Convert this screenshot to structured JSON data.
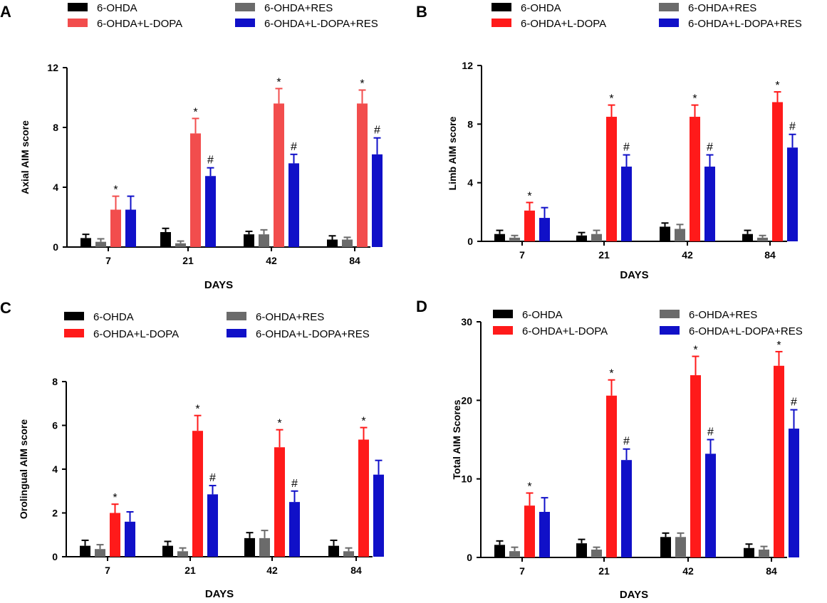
{
  "colors": {
    "6-OHDA": "#000000",
    "6-OHDA+RES": "#6b6b6b",
    "6-OHDA+L-DOPA": "#ff1a1a",
    "6-OHDA+L-DOPA-lightA": "#f24d4d",
    "6-OHDA+L-DOPA+RES": "#1010c8"
  },
  "chart_data": [
    {
      "panel": "A",
      "type": "bar",
      "title": "",
      "xlabel": "DAYS",
      "ylabel": "Axial AIM score",
      "categories": [
        "7",
        "21",
        "42",
        "84"
      ],
      "ylim": [
        0,
        12
      ],
      "yticks": [
        0,
        4,
        8,
        12
      ],
      "legend": [
        "6-OHDA",
        "6-OHDA+L-DOPA",
        "6-OHDA+RES",
        "6-OHDA+L-DOPA+RES"
      ],
      "series": [
        {
          "name": "6-OHDA",
          "values": [
            0.6,
            1.0,
            0.85,
            0.5
          ],
          "errors": [
            0.25,
            0.25,
            0.2,
            0.25
          ],
          "marks": [
            "",
            "",
            "",
            ""
          ]
        },
        {
          "name": "6-OHDA+RES",
          "values": [
            0.35,
            0.25,
            0.85,
            0.5
          ],
          "errors": [
            0.2,
            0.15,
            0.3,
            0.15
          ],
          "marks": [
            "",
            "",
            "",
            ""
          ]
        },
        {
          "name": "6-OHDA+L-DOPA",
          "values": [
            2.5,
            7.6,
            9.6,
            9.6
          ],
          "errors": [
            0.9,
            1.0,
            1.0,
            0.9
          ],
          "marks": [
            "*",
            "*",
            "*",
            "*"
          ]
        },
        {
          "name": "6-OHDA+L-DOPA+RES",
          "values": [
            2.5,
            4.75,
            5.6,
            6.2
          ],
          "errors": [
            0.9,
            0.55,
            0.6,
            1.1
          ],
          "marks": [
            "",
            "#",
            "#",
            "#"
          ]
        }
      ]
    },
    {
      "panel": "B",
      "type": "bar",
      "title": "",
      "xlabel": "DAYS",
      "ylabel": "Limb AIM score",
      "categories": [
        "7",
        "21",
        "42",
        "84"
      ],
      "ylim": [
        0,
        12
      ],
      "yticks": [
        0,
        4,
        8,
        12
      ],
      "legend": [
        "6-OHDA",
        "6-OHDA+L-DOPA",
        "6-OHDA+RES",
        "6-OHDA+L-DOPA+RES"
      ],
      "series": [
        {
          "name": "6-OHDA",
          "values": [
            0.5,
            0.4,
            1.0,
            0.5
          ],
          "errors": [
            0.25,
            0.2,
            0.25,
            0.25
          ],
          "marks": [
            "",
            "",
            "",
            ""
          ]
        },
        {
          "name": "6-OHDA+RES",
          "values": [
            0.25,
            0.5,
            0.85,
            0.25
          ],
          "errors": [
            0.15,
            0.25,
            0.3,
            0.15
          ],
          "marks": [
            "",
            "",
            "",
            ""
          ]
        },
        {
          "name": "6-OHDA+L-DOPA",
          "values": [
            2.1,
            8.5,
            8.5,
            9.5
          ],
          "errors": [
            0.55,
            0.8,
            0.8,
            0.7
          ],
          "marks": [
            "*",
            "*",
            "*",
            "*"
          ]
        },
        {
          "name": "6-OHDA+L-DOPA+RES",
          "values": [
            1.6,
            5.1,
            5.1,
            6.4
          ],
          "errors": [
            0.7,
            0.8,
            0.8,
            0.9
          ],
          "marks": [
            "",
            "#",
            "#",
            "#"
          ]
        }
      ]
    },
    {
      "panel": "C",
      "type": "bar",
      "title": "",
      "xlabel": "DAYS",
      "ylabel": "Orolingual AIM score",
      "categories": [
        "7",
        "21",
        "42",
        "84"
      ],
      "ylim": [
        0,
        8
      ],
      "yticks": [
        0,
        2,
        4,
        6,
        8
      ],
      "legend": [
        "6-OHDA",
        "6-OHDA+L-DOPA",
        "6-OHDA+RES",
        "6-OHDA+L-DOPA+RES"
      ],
      "series": [
        {
          "name": "6-OHDA",
          "values": [
            0.5,
            0.5,
            0.85,
            0.5
          ],
          "errors": [
            0.25,
            0.2,
            0.25,
            0.25
          ],
          "marks": [
            "",
            "",
            "",
            ""
          ]
        },
        {
          "name": "6-OHDA+RES",
          "values": [
            0.35,
            0.25,
            0.85,
            0.25
          ],
          "errors": [
            0.2,
            0.15,
            0.35,
            0.15
          ],
          "marks": [
            "",
            "",
            "",
            ""
          ]
        },
        {
          "name": "6-OHDA+L-DOPA",
          "values": [
            2.0,
            5.75,
            5.0,
            5.35
          ],
          "errors": [
            0.4,
            0.7,
            0.8,
            0.55
          ],
          "marks": [
            "*",
            "*",
            "*",
            "*"
          ]
        },
        {
          "name": "6-OHDA+L-DOPA+RES",
          "values": [
            1.6,
            2.85,
            2.5,
            3.75
          ],
          "errors": [
            0.45,
            0.4,
            0.5,
            0.65
          ],
          "marks": [
            "",
            "#",
            "#",
            ""
          ]
        }
      ]
    },
    {
      "panel": "D",
      "type": "bar",
      "title": "",
      "xlabel": "DAYS",
      "ylabel": "Total  AIM Scores",
      "categories": [
        "7",
        "21",
        "42",
        "84"
      ],
      "ylim": [
        0,
        30
      ],
      "yticks": [
        0,
        10,
        20,
        30
      ],
      "legend": [
        "6-OHDA",
        "6-OHDA+L-DOPA",
        "6-OHDA+RES",
        "6-OHDA+L-DOPA+RES"
      ],
      "series": [
        {
          "name": "6-OHDA",
          "values": [
            1.6,
            1.8,
            2.6,
            1.2
          ],
          "errors": [
            0.5,
            0.5,
            0.5,
            0.5
          ],
          "marks": [
            "",
            "",
            "",
            ""
          ]
        },
        {
          "name": "6-OHDA+RES",
          "values": [
            0.8,
            1.0,
            2.6,
            1.0
          ],
          "errors": [
            0.5,
            0.3,
            0.5,
            0.4
          ],
          "marks": [
            "",
            "",
            "",
            ""
          ]
        },
        {
          "name": "6-OHDA+L-DOPA",
          "values": [
            6.6,
            20.6,
            23.2,
            24.4
          ],
          "errors": [
            1.6,
            2.0,
            2.4,
            1.8
          ],
          "marks": [
            "*",
            "*",
            "*",
            "*"
          ]
        },
        {
          "name": "6-OHDA+L-DOPA+RES",
          "values": [
            5.8,
            12.4,
            13.2,
            16.4
          ],
          "errors": [
            1.8,
            1.4,
            1.8,
            2.4
          ],
          "marks": [
            "",
            "#",
            "#",
            "#"
          ]
        }
      ]
    }
  ]
}
